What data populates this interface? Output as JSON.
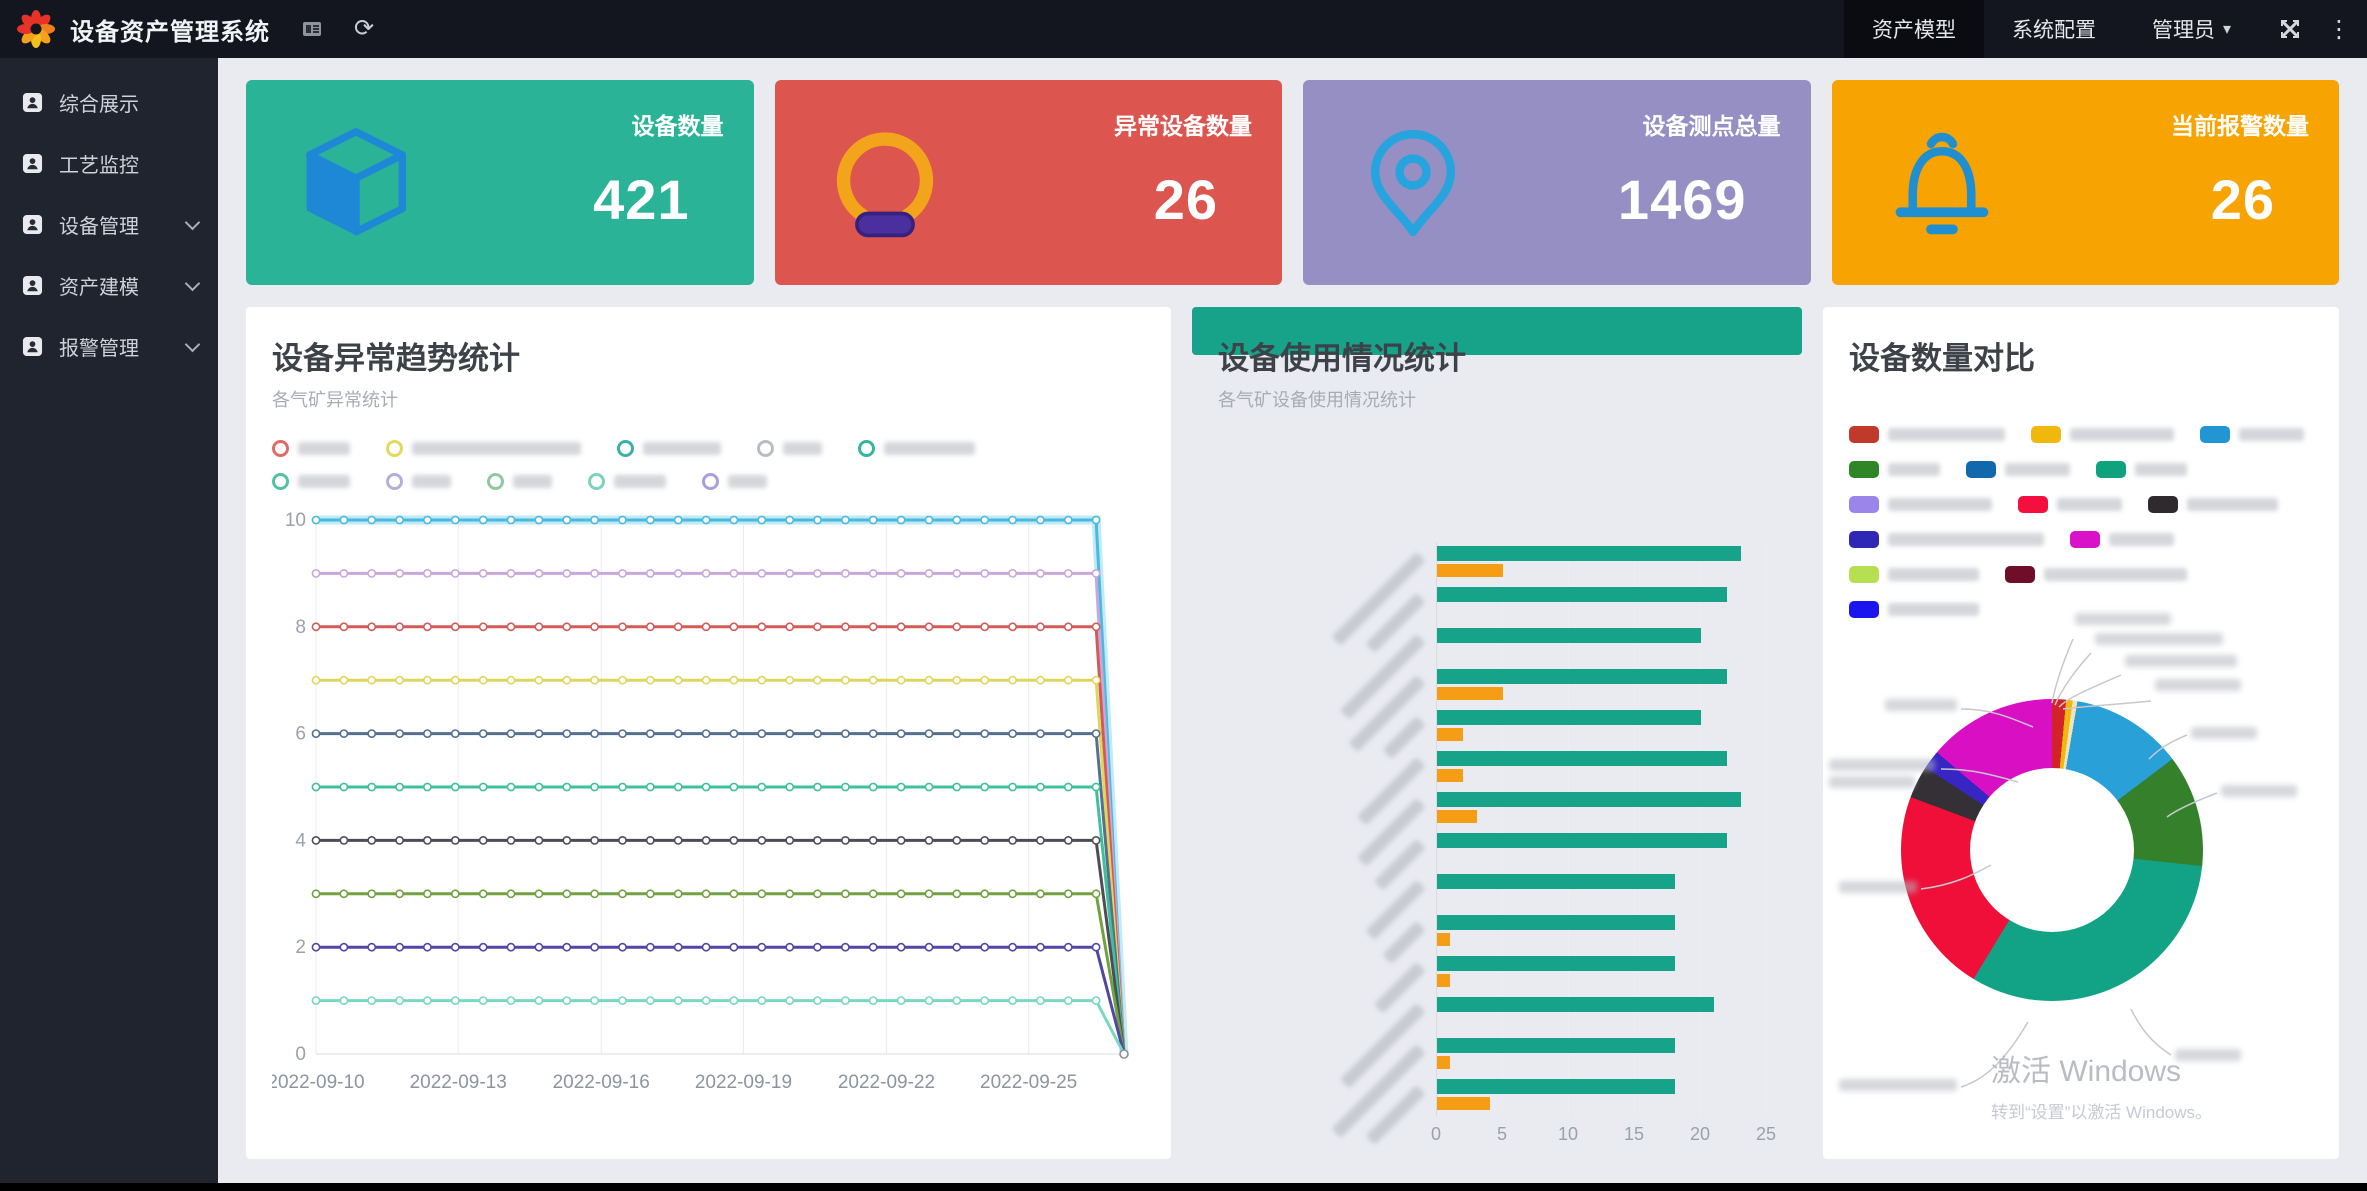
{
  "header": {
    "title": "设备资产管理系统",
    "nav": [
      {
        "label": "资产模型",
        "active": true
      },
      {
        "label": "系统配置",
        "active": false
      },
      {
        "label": "管理员",
        "active": false,
        "has_caret": true
      }
    ]
  },
  "icons": {
    "caret_down": "▾",
    "kebab": "⋮",
    "refresh": "⟳"
  },
  "sidebar": [
    {
      "label": "综合展示",
      "expandable": false
    },
    {
      "label": "工艺监控",
      "expandable": false
    },
    {
      "label": "设备管理",
      "expandable": true
    },
    {
      "label": "资产建模",
      "expandable": true
    },
    {
      "label": "报警管理",
      "expandable": true
    }
  ],
  "cards": [
    {
      "label": "设备数量",
      "value": "421",
      "bg": "#2ab397",
      "icon": "cube-icon"
    },
    {
      "label": "异常设备数量",
      "value": "26",
      "bg": "#dc554f",
      "icon": "alarm-ring-icon"
    },
    {
      "label": "设备测点总量",
      "value": "1469",
      "bg": "#968fc4",
      "icon": "map-pin-icon"
    },
    {
      "label": "当前报警数量",
      "value": "26",
      "bg": "#f7a301",
      "icon": "bell-icon"
    }
  ],
  "line_chart": {
    "type": "line",
    "title": "设备异常趋势统计",
    "subtitle": "各气矿异常统计",
    "y_ticks": [
      0,
      2,
      4,
      6,
      8,
      10
    ],
    "x_labels": [
      "2022-09-10",
      "2022-09-13",
      "2022-09-16",
      "2022-09-19",
      "2022-09-22",
      "2022-09-25"
    ],
    "legend": [
      {
        "color": "#e06b66",
        "label_blurred": true,
        "len": 4
      },
      {
        "color": "#e3d85a",
        "label_blurred": true,
        "len": 13
      },
      {
        "color": "#3bb0a8",
        "label_blurred": true,
        "len": 6
      },
      {
        "color": "#b9bcc4",
        "label_blurred": true,
        "len": 3
      },
      {
        "color": "#36b59e",
        "label_blurred": true,
        "len": 7
      },
      {
        "color": "#52c2a0",
        "label_blurred": true,
        "len": 4
      },
      {
        "color": "#b7addc",
        "label_blurred": true,
        "len": 3
      },
      {
        "color": "#8fc9a2",
        "label_blurred": true,
        "len": 3
      },
      {
        "color": "#7cd3bd",
        "label_blurred": true,
        "len": 4
      },
      {
        "color": "#ab9edd",
        "label_blurred": true,
        "len": 3
      }
    ],
    "series": [
      {
        "value": 10,
        "color": "#49b9dd",
        "halo": "#b5e6f7"
      },
      {
        "value": 9,
        "color": "#c9a7dc"
      },
      {
        "value": 8,
        "color": "#d25b56"
      },
      {
        "value": 7,
        "color": "#ddd75e"
      },
      {
        "value": 6,
        "color": "#53718f"
      },
      {
        "value": 5,
        "color": "#3fbf9d"
      },
      {
        "value": 4,
        "color": "#4d4d55"
      },
      {
        "value": 3,
        "color": "#71a140"
      },
      {
        "value": 2,
        "color": "#5046a5"
      },
      {
        "value": 1,
        "color": "#79d8be"
      }
    ],
    "drop_to_zero_at_end": true
  },
  "bar_chart": {
    "type": "bar-horizontal",
    "title": "设备使用情况统计",
    "subtitle": "各气矿设备使用情况统计",
    "x_ticks": [
      0,
      5,
      10,
      15,
      20,
      25
    ],
    "x_max": 25,
    "series_colors": {
      "primary": "#17a389",
      "secondary": "#f59d15"
    },
    "groups": [
      {
        "primary": 23,
        "secondary": 5,
        "label_blurred": true,
        "len": 10
      },
      {
        "primary": 22,
        "secondary": 0,
        "label_blurred": true,
        "len": 6
      },
      {
        "primary": 20,
        "secondary": 0,
        "label_blurred": true,
        "len": 9
      },
      {
        "primary": 22,
        "secondary": 5,
        "label_blurred": true,
        "len": 8
      },
      {
        "primary": 20,
        "secondary": 2,
        "label_blurred": true,
        "len": 4
      },
      {
        "primary": 22,
        "secondary": 2,
        "label_blurred": true,
        "len": 7
      },
      {
        "primary": 23,
        "secondary": 3,
        "label_blurred": true,
        "len": 7
      },
      {
        "primary": 22,
        "secondary": 0,
        "label_blurred": true,
        "len": 5
      },
      {
        "primary": 18,
        "secondary": 0,
        "label_blurred": true,
        "len": 6
      },
      {
        "primary": 18,
        "secondary": 1,
        "label_blurred": true,
        "len": 4
      },
      {
        "primary": 18,
        "secondary": 1,
        "label_blurred": true,
        "len": 5
      },
      {
        "primary": 21,
        "secondary": 0,
        "label_blurred": true,
        "len": 9
      },
      {
        "primary": 18,
        "secondary": 1,
        "label_blurred": true,
        "len": 10
      },
      {
        "primary": 18,
        "secondary": 4,
        "label_blurred": true,
        "len": 6
      }
    ]
  },
  "donut_chart": {
    "type": "pie",
    "title": "设备数量对比",
    "legend": [
      {
        "color": "#c0392b",
        "label_blurred": true,
        "len": 9
      },
      {
        "color": "#f0b80c",
        "label_blurred": true,
        "len": 8
      },
      {
        "color": "#2196d3",
        "label_blurred": true,
        "len": 5
      },
      {
        "color": "#2e8626",
        "label_blurred": true,
        "len": 4
      },
      {
        "color": "#1268ad",
        "label_blurred": true,
        "len": 5
      },
      {
        "color": "#0ea37d",
        "label_blurred": true,
        "len": 4
      },
      {
        "color": "#9b85ea",
        "label_blurred": true,
        "len": 8
      },
      {
        "color": "#f50f3f",
        "label_blurred": true,
        "len": 5
      },
      {
        "color": "#2e2a2e",
        "label_blurred": true,
        "len": 7
      },
      {
        "color": "#2f27b5",
        "label_blurred": true,
        "len": 12
      },
      {
        "color": "#d911c9",
        "label_blurred": true,
        "len": 5
      },
      {
        "color": "#b6e052",
        "label_blurred": true,
        "len": 7
      },
      {
        "color": "#6e0e28",
        "label_blurred": true,
        "len": 11
      },
      {
        "color": "#1b16f0",
        "label_blurred": true,
        "len": 7
      }
    ],
    "segments": [
      {
        "color": "#d2232a",
        "value": 1.5
      },
      {
        "color": "#f0b80c",
        "value": 0.7
      },
      {
        "color": "#efe3c0",
        "value": 0.5
      },
      {
        "color": "#29a0d8",
        "value": 12
      },
      {
        "color": "#35802b",
        "value": 12
      },
      {
        "color": "#12a285",
        "value": 32
      },
      {
        "color": "#ef0f38",
        "value": 22
      },
      {
        "color": "#343036",
        "value": 3.5
      },
      {
        "color": "#3726c3",
        "value": 2
      },
      {
        "color": "#d90fc4",
        "value": 13.8
      }
    ]
  },
  "watermark": {
    "line1": "激活 Windows",
    "line2": "转到“设置”以激活 Windows。"
  }
}
